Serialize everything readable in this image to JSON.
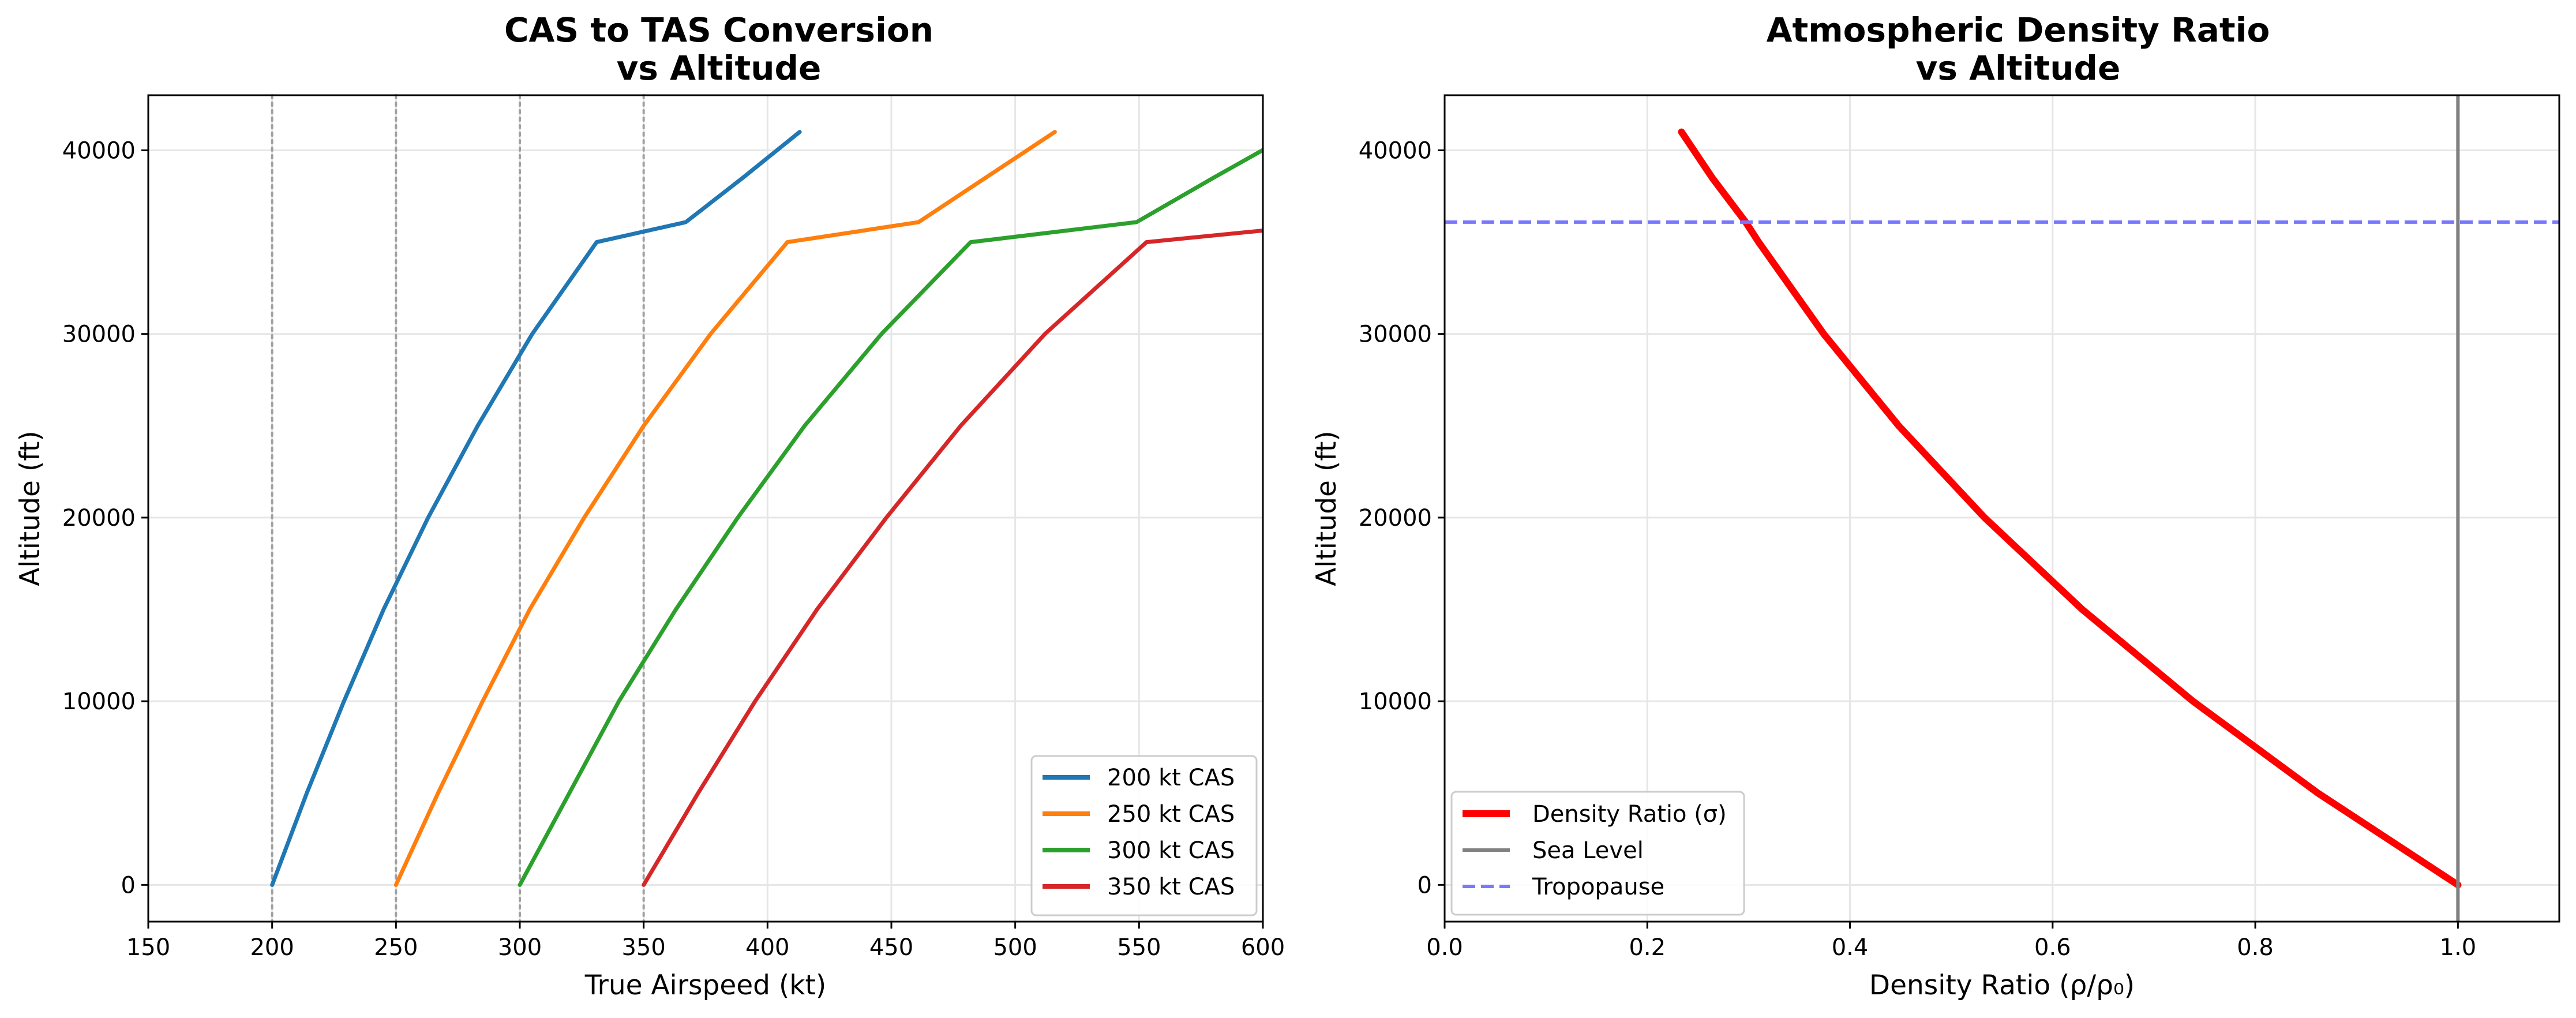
{
  "chart_data": [
    {
      "type": "line",
      "title_line1": "CAS to TAS Conversion",
      "title_line2": "vs Altitude",
      "xlabel": "True Airspeed (kt)",
      "ylabel": "Altitude (ft)",
      "xlim": [
        150,
        600
      ],
      "ylim": [
        -2000,
        43000
      ],
      "xticks": [
        "150",
        "200",
        "250",
        "300",
        "350",
        "400",
        "450",
        "500",
        "550",
        "600"
      ],
      "yticks": [
        "0",
        "10000",
        "20000",
        "30000",
        "40000"
      ],
      "grid": true,
      "legend_position": "lower right",
      "reference_lines": {
        "orientation": "vertical",
        "style": "dotted",
        "color": "#a0a0a0",
        "x": [
          200,
          250,
          300,
          350
        ]
      },
      "series": [
        {
          "name": "200 kt CAS",
          "color": "#1f77b4",
          "points": [
            [
              200,
              0
            ],
            [
              214,
              5000
            ],
            [
              229,
              10000
            ],
            [
              245,
              15000
            ],
            [
              263,
              20000
            ],
            [
              283,
              25000
            ],
            [
              305,
              30000
            ],
            [
              331,
              35000
            ],
            [
              367,
              36089
            ],
            [
              390,
              38500
            ],
            [
              413,
              41000
            ]
          ]
        },
        {
          "name": "250 kt CAS",
          "color": "#ff7f0e",
          "points": [
            [
              250,
              0
            ],
            [
              267,
              5000
            ],
            [
              285,
              10000
            ],
            [
              304,
              15000
            ],
            [
              326,
              20000
            ],
            [
              350,
              25000
            ],
            [
              377,
              30000
            ],
            [
              408,
              35000
            ],
            [
              461,
              36089
            ],
            [
              488,
              38500
            ],
            [
              516,
              41000
            ]
          ]
        },
        {
          "name": "300 kt CAS",
          "color": "#2ca02c",
          "points": [
            [
              300,
              0
            ],
            [
              320,
              5000
            ],
            [
              340,
              10000
            ],
            [
              363,
              15000
            ],
            [
              388,
              20000
            ],
            [
              415,
              25000
            ],
            [
              446,
              30000
            ],
            [
              482,
              35000
            ],
            [
              549,
              36089
            ],
            [
              580,
              38500
            ],
            [
              613,
              41000
            ]
          ]
        },
        {
          "name": "350 kt CAS",
          "color": "#d62728",
          "points": [
            [
              350,
              0
            ],
            [
              372,
              5000
            ],
            [
              395,
              10000
            ],
            [
              420,
              15000
            ],
            [
              448,
              20000
            ],
            [
              478,
              25000
            ],
            [
              512,
              30000
            ],
            [
              553,
              35000
            ],
            [
              634,
              36089
            ]
          ]
        }
      ]
    },
    {
      "type": "line",
      "title_line1": "Atmospheric Density Ratio",
      "title_line2": "vs Altitude",
      "xlabel": "Density Ratio (ρ/ρ₀)",
      "ylabel": "Altitude (ft)",
      "xlim": [
        0.0,
        1.1
      ],
      "ylim": [
        -2000,
        43000
      ],
      "xticks": [
        "0.0",
        "0.2",
        "0.4",
        "0.6",
        "0.8",
        "1.0"
      ],
      "yticks": [
        "0",
        "10000",
        "20000",
        "30000",
        "40000"
      ],
      "grid": true,
      "legend_position": "lower left",
      "series": [
        {
          "name": "Density Ratio (σ)",
          "color": "#ff0000",
          "points": [
            [
              1.0,
              0
            ],
            [
              0.8617,
              5000
            ],
            [
              0.7385,
              10000
            ],
            [
              0.6292,
              15000
            ],
            [
              0.5328,
              20000
            ],
            [
              0.4481,
              25000
            ],
            [
              0.3741,
              30000
            ],
            [
              0.3099,
              35000
            ],
            [
              0.2971,
              36089
            ],
            [
              0.2641,
              38500
            ],
            [
              0.2337,
              41000
            ]
          ]
        },
        {
          "name": "Sea Level",
          "color": "#808080",
          "orientation": "vertical",
          "x": 1.0
        },
        {
          "name": "Tropopause",
          "color": "#7878ff",
          "orientation": "horizontal",
          "style": "dashed",
          "y": 36089
        }
      ]
    }
  ]
}
